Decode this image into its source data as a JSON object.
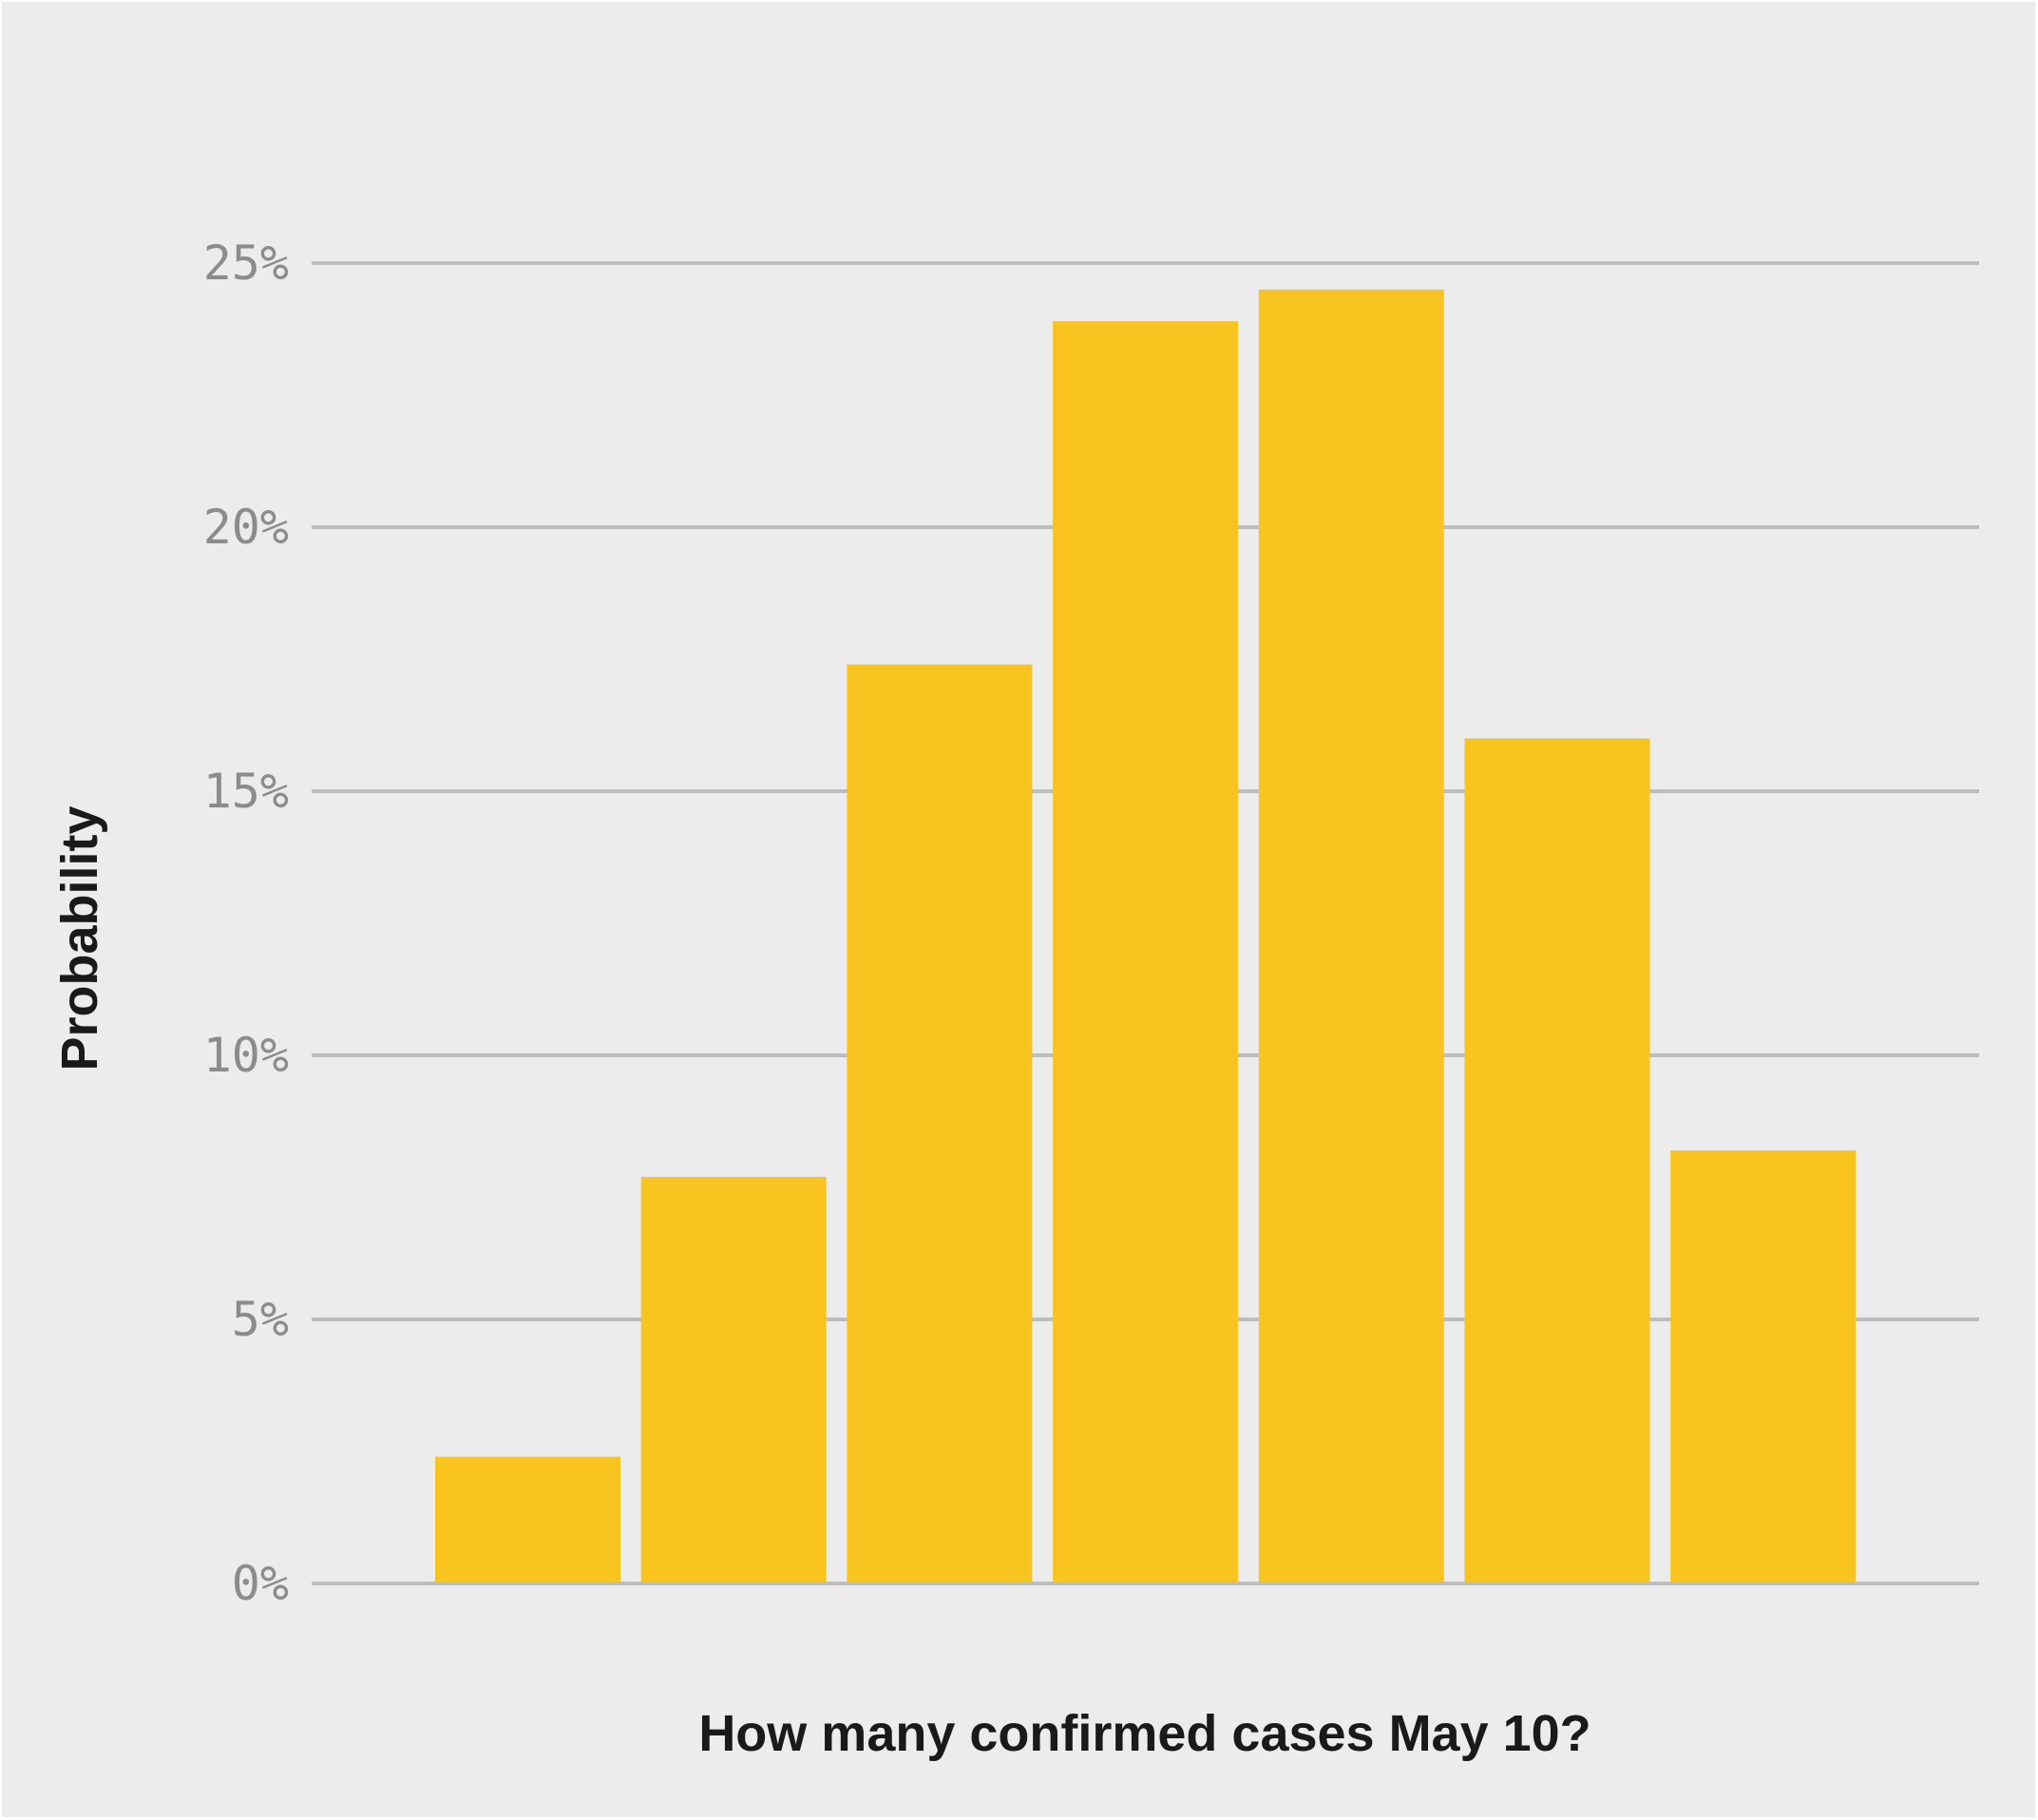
{
  "chart_data": {
    "type": "bar",
    "title": "",
    "xlabel": "How many confirmed cases May 10?",
    "ylabel": "Probability",
    "ylim": [
      0,
      25
    ],
    "yticks": [
      0,
      5,
      10,
      15,
      20,
      25
    ],
    "ytick_labels": [
      "0%",
      "5%",
      "10%",
      "15%",
      "20%",
      "25%"
    ],
    "values": [
      2.4,
      7.7,
      17.4,
      23.9,
      24.5,
      16.0,
      8.2
    ],
    "grid": true,
    "legend": "none",
    "colors": {
      "bar": "#f9c41f",
      "grid": "#bdbdbd",
      "background": "#ececec"
    }
  }
}
